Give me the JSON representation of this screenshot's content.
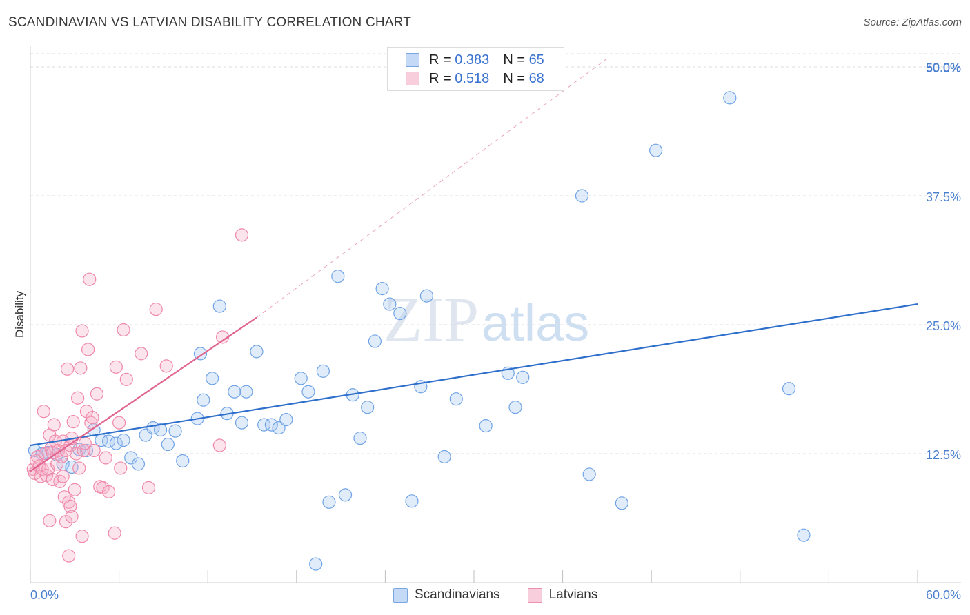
{
  "header": {
    "title": "SCANDINAVIAN VS LATVIAN DISABILITY CORRELATION CHART",
    "source": "Source: ZipAtlas.com"
  },
  "watermark": {
    "zip": "ZIP",
    "atlas": "atlas"
  },
  "legend": {
    "rows": [
      {
        "r_label": "R = ",
        "r_value": "0.383",
        "n_label": "N = ",
        "n_value": "65",
        "color": "#a8c8f0"
      },
      {
        "r_label": "R = ",
        "r_value": "0.518",
        "n_label": "N = ",
        "n_value": "68",
        "color": "#f6b3c9"
      }
    ]
  },
  "bottom_legend": [
    {
      "label": "Scandinavians",
      "color": "#a8c8f0"
    },
    {
      "label": "Latvians",
      "color": "#f6b3c9"
    }
  ],
  "chart_data": {
    "type": "scatter",
    "title": "SCANDINAVIAN VS LATVIAN DISABILITY CORRELATION CHART",
    "xlabel": "",
    "ylabel": "Disability",
    "xlim": [
      0,
      60
    ],
    "ylim": [
      0,
      50
    ],
    "x_tick_labels": [
      "0.0%",
      "60.0%"
    ],
    "y_ticks": [
      12.5,
      25.0,
      37.5,
      50.0
    ],
    "y_tick_labels": [
      "12.5%",
      "25.0%",
      "37.5%",
      "50.0%"
    ],
    "grid": true,
    "colors": {
      "blue": "#6fa3e6",
      "blue_line": "#2f6fcc",
      "pink": "#ef88a9",
      "pink_line": "#e06390"
    },
    "series": [
      {
        "name": "Scandinavians",
        "trend": {
          "x0": 0,
          "y0": 13.3,
          "x1": 60,
          "y1": 27.0
        },
        "points": [
          [
            0.3,
            12.8
          ],
          [
            0.8,
            12.5
          ],
          [
            1.2,
            12.6
          ],
          [
            1.8,
            12.4
          ],
          [
            2.2,
            11.5
          ],
          [
            2.8,
            11.2
          ],
          [
            3.3,
            12.9
          ],
          [
            3.8,
            12.8
          ],
          [
            4.3,
            14.8
          ],
          [
            4.8,
            13.8
          ],
          [
            5.3,
            13.7
          ],
          [
            5.8,
            13.5
          ],
          [
            6.3,
            13.8
          ],
          [
            6.8,
            12.1
          ],
          [
            7.3,
            11.5
          ],
          [
            7.8,
            14.3
          ],
          [
            8.3,
            15.0
          ],
          [
            8.8,
            14.8
          ],
          [
            9.3,
            13.4
          ],
          [
            9.8,
            14.7
          ],
          [
            10.3,
            11.8
          ],
          [
            11.3,
            15.9
          ],
          [
            11.5,
            22.2
          ],
          [
            11.7,
            17.7
          ],
          [
            12.3,
            19.8
          ],
          [
            12.8,
            26.8
          ],
          [
            13.3,
            16.4
          ],
          [
            13.8,
            18.5
          ],
          [
            14.3,
            15.5
          ],
          [
            14.6,
            18.5
          ],
          [
            15.3,
            22.4
          ],
          [
            15.8,
            15.3
          ],
          [
            16.3,
            15.3
          ],
          [
            16.8,
            15.0
          ],
          [
            17.3,
            15.8
          ],
          [
            18.3,
            19.8
          ],
          [
            18.8,
            18.5
          ],
          [
            19.3,
            1.8
          ],
          [
            19.8,
            20.5
          ],
          [
            20.2,
            7.8
          ],
          [
            20.8,
            29.7
          ],
          [
            21.3,
            8.5
          ],
          [
            21.8,
            18.2
          ],
          [
            22.3,
            14.0
          ],
          [
            22.8,
            17.0
          ],
          [
            23.3,
            23.4
          ],
          [
            23.8,
            28.5
          ],
          [
            24.3,
            27.0
          ],
          [
            25.0,
            26.1
          ],
          [
            25.8,
            7.9
          ],
          [
            26.4,
            19.0
          ],
          [
            26.8,
            27.8
          ],
          [
            28.0,
            12.2
          ],
          [
            28.8,
            17.8
          ],
          [
            30.8,
            15.2
          ],
          [
            32.3,
            20.3
          ],
          [
            32.8,
            17.0
          ],
          [
            33.3,
            19.9
          ],
          [
            37.3,
            37.5
          ],
          [
            37.8,
            10.5
          ],
          [
            40.0,
            7.7
          ],
          [
            42.3,
            41.9
          ],
          [
            47.3,
            47.0
          ],
          [
            51.3,
            18.8
          ],
          [
            52.3,
            4.6
          ]
        ]
      },
      {
        "name": "Latvians",
        "trend": {
          "x0": 0,
          "y0": 10.8,
          "x1": 15.3,
          "y1": 25.7
        },
        "trend_extended": {
          "x0": 15.3,
          "y0": 25.7,
          "x1": 39.0,
          "y1": 50.8
        },
        "points": [
          [
            0.2,
            11.0
          ],
          [
            0.3,
            10.6
          ],
          [
            0.4,
            11.8
          ],
          [
            0.5,
            12.2
          ],
          [
            0.6,
            11.3
          ],
          [
            0.7,
            10.3
          ],
          [
            0.8,
            11.0
          ],
          [
            0.9,
            16.6
          ],
          [
            1.0,
            12.5
          ],
          [
            1.1,
            10.4
          ],
          [
            1.2,
            11.0
          ],
          [
            1.3,
            14.3
          ],
          [
            1.4,
            13.0
          ],
          [
            1.5,
            12.6
          ],
          [
            1.6,
            15.3
          ],
          [
            1.7,
            13.7
          ],
          [
            1.8,
            11.5
          ],
          [
            1.9,
            12.8
          ],
          [
            2.0,
            9.8
          ],
          [
            2.1,
            12.2
          ],
          [
            2.2,
            13.7
          ],
          [
            2.3,
            8.3
          ],
          [
            2.4,
            12.8
          ],
          [
            2.5,
            20.7
          ],
          [
            2.6,
            7.8
          ],
          [
            2.7,
            13.3
          ],
          [
            2.8,
            14.0
          ],
          [
            2.9,
            15.6
          ],
          [
            3.0,
            9.0
          ],
          [
            3.1,
            12.5
          ],
          [
            3.2,
            17.9
          ],
          [
            3.3,
            11.1
          ],
          [
            3.4,
            20.8
          ],
          [
            3.5,
            24.4
          ],
          [
            3.6,
            12.8
          ],
          [
            3.7,
            13.5
          ],
          [
            3.8,
            16.6
          ],
          [
            3.9,
            22.6
          ],
          [
            4.0,
            29.4
          ],
          [
            4.1,
            15.5
          ],
          [
            4.2,
            16.0
          ],
          [
            4.3,
            12.8
          ],
          [
            4.5,
            18.3
          ],
          [
            4.7,
            9.3
          ],
          [
            4.9,
            9.2
          ],
          [
            5.1,
            12.1
          ],
          [
            5.3,
            8.8
          ],
          [
            5.7,
            4.8
          ],
          [
            5.8,
            20.9
          ],
          [
            6.0,
            15.5
          ],
          [
            6.1,
            11.1
          ],
          [
            6.3,
            24.5
          ],
          [
            6.5,
            19.7
          ],
          [
            7.5,
            22.2
          ],
          [
            8.0,
            9.2
          ],
          [
            8.5,
            26.5
          ],
          [
            9.2,
            21.0
          ],
          [
            12.8,
            13.3
          ],
          [
            13.0,
            23.8
          ],
          [
            14.3,
            33.7
          ],
          [
            2.4,
            5.9
          ],
          [
            2.8,
            6.4
          ],
          [
            2.7,
            7.4
          ],
          [
            3.5,
            4.5
          ],
          [
            2.6,
            2.6
          ],
          [
            1.3,
            6.0
          ],
          [
            2.2,
            10.3
          ],
          [
            1.5,
            10.0
          ]
        ]
      }
    ]
  }
}
